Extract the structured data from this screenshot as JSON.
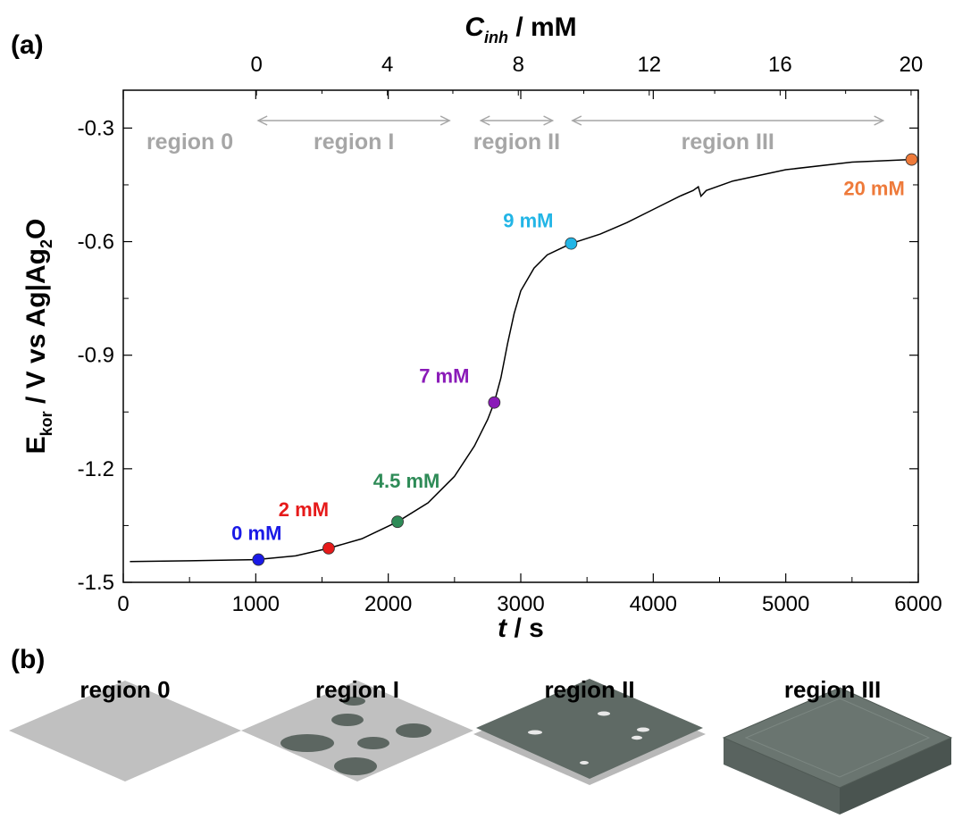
{
  "chart_data": {
    "type": "line",
    "panel_a_label": "(a)",
    "xlabel": {
      "italic": "t",
      "rest": " / s"
    },
    "x2label": {
      "italic": "C",
      "sub": "inh",
      "rest": " / mM"
    },
    "ylabel": [
      {
        "text": "E"
      },
      {
        "text": "kor",
        "sub": true
      },
      {
        "text": " / V vs Ag|Ag"
      },
      {
        "text": "2",
        "sub": true
      },
      {
        "text": "O"
      }
    ],
    "xlim": [
      0,
      6000
    ],
    "xticks": [
      0,
      1000,
      2000,
      3000,
      4000,
      5000,
      6000
    ],
    "xminor_ticks": [
      500,
      1500,
      2500,
      3500,
      4500,
      5500
    ],
    "x2lim": [
      -4.07,
      20.22
    ],
    "x2ticks": [
      0,
      4,
      8,
      12,
      16,
      20
    ],
    "x2minor_ticks": [
      2,
      6,
      10,
      14,
      18
    ],
    "ylim": [
      -1.5,
      -0.2
    ],
    "yticks": [
      {
        "value": -1.5,
        "label": "-1.5"
      },
      {
        "value": -1.2,
        "label": "-1.2"
      },
      {
        "value": -0.9,
        "label": "-0.9"
      },
      {
        "value": -0.6,
        "label": "-0.6"
      },
      {
        "value": -0.3,
        "label": "-0.3"
      }
    ],
    "yminor_ticks": [
      -1.35,
      -1.05,
      -0.75,
      -0.45
    ],
    "series": [
      {
        "color": "#000000",
        "x": [
          50,
          500,
          1000,
          1300,
          1550,
          1800,
          2070,
          2300,
          2500,
          2650,
          2750,
          2800,
          2850,
          2900,
          2950,
          3000,
          3100,
          3200,
          3380,
          3600,
          3800,
          4000,
          4200,
          4300,
          4340,
          4360,
          4400,
          4600,
          5000,
          5500,
          5950
        ],
        "values": [
          -1.445,
          -1.443,
          -1.44,
          -1.43,
          -1.41,
          -1.385,
          -1.34,
          -1.29,
          -1.22,
          -1.14,
          -1.07,
          -1.025,
          -0.96,
          -0.87,
          -0.79,
          -0.73,
          -0.67,
          -0.635,
          -0.605,
          -0.58,
          -0.55,
          -0.515,
          -0.48,
          -0.465,
          -0.455,
          -0.48,
          -0.465,
          -0.44,
          -0.41,
          -0.39,
          -0.383
        ]
      }
    ],
    "points": [
      {
        "x": 1020,
        "y": -1.44,
        "label": "0 mM",
        "color": "#1a1ae6"
      },
      {
        "x": 1550,
        "y": -1.41,
        "label": "2 mM",
        "color": "#e61a1a"
      },
      {
        "x": 2070,
        "y": -1.34,
        "label": "4.5 mM",
        "color": "#2e8b57"
      },
      {
        "x": 2800,
        "y": -1.025,
        "label": "7 mM",
        "color": "#8a1ab8"
      },
      {
        "x": 3380,
        "y": -0.605,
        "label": "9 mM",
        "color": "#22b5e6"
      },
      {
        "x": 5950,
        "y": -0.383,
        "label": "20 mM",
        "color": "#ee7a3a"
      }
    ],
    "regions": [
      {
        "label": "region 0",
        "from": -4.07,
        "to": 0,
        "arrow": false
      },
      {
        "label": "region I",
        "from": 0,
        "to": 5.95,
        "arrow": true
      },
      {
        "label": "region II",
        "from": 6.8,
        "to": 9.1,
        "arrow": true
      },
      {
        "label": "region III",
        "from": 9.6,
        "to": 19.2,
        "arrow": true
      }
    ],
    "region_color": "#a6a6a6"
  },
  "panel_b": {
    "label": "(b)",
    "titles": [
      "region 0",
      "region I",
      "region II",
      "region III"
    ]
  }
}
